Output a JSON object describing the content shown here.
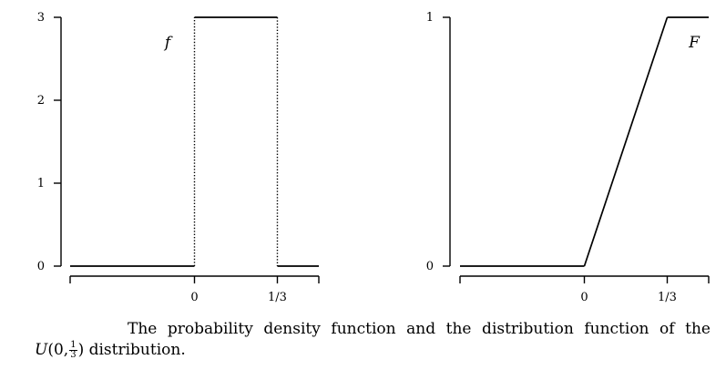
{
  "chart_data": [
    {
      "type": "line",
      "name": "f",
      "label": "f",
      "x_ticks": [
        {
          "value": 0,
          "label": "0"
        },
        {
          "value": 0.3333,
          "label": "1/3"
        }
      ],
      "y_ticks": [
        {
          "value": 0,
          "label": "0"
        },
        {
          "value": 1,
          "label": "1"
        },
        {
          "value": 2,
          "label": "2"
        },
        {
          "value": 3,
          "label": "3"
        }
      ],
      "xlim": [
        -0.5,
        0.5
      ],
      "ylim": [
        0,
        3
      ],
      "segments": [
        {
          "x": [
            -0.5,
            0
          ],
          "y": [
            0,
            0
          ],
          "style": "solid"
        },
        {
          "x": [
            0,
            0
          ],
          "y": [
            0,
            3
          ],
          "style": "dotted"
        },
        {
          "x": [
            0,
            0.3333
          ],
          "y": [
            3,
            3
          ],
          "style": "solid"
        },
        {
          "x": [
            0.3333,
            0.3333
          ],
          "y": [
            3,
            0
          ],
          "style": "dotted"
        },
        {
          "x": [
            0.3333,
            0.5
          ],
          "y": [
            0,
            0
          ],
          "style": "solid"
        }
      ]
    },
    {
      "type": "line",
      "name": "F",
      "label": "F",
      "x_ticks": [
        {
          "value": 0,
          "label": "0"
        },
        {
          "value": 0.3333,
          "label": "1/3"
        }
      ],
      "y_ticks": [
        {
          "value": 0,
          "label": "0"
        },
        {
          "value": 1,
          "label": "1"
        }
      ],
      "xlim": [
        -0.5,
        0.5
      ],
      "ylim": [
        0,
        1
      ],
      "segments": [
        {
          "x": [
            -0.5,
            0
          ],
          "y": [
            0,
            0
          ],
          "style": "solid"
        },
        {
          "x": [
            0,
            0.3333
          ],
          "y": [
            0,
            1
          ],
          "style": "solid"
        },
        {
          "x": [
            0.3333,
            0.5
          ],
          "y": [
            1,
            1
          ],
          "style": "solid"
        }
      ]
    }
  ],
  "caption": {
    "line1": "The probability density function and the distribution function of the",
    "dist_symbol": "U",
    "args_open": "(0,",
    "frac_num": "1",
    "frac_den": "3",
    "args_close": ")",
    "line2_rest": " distribution."
  }
}
